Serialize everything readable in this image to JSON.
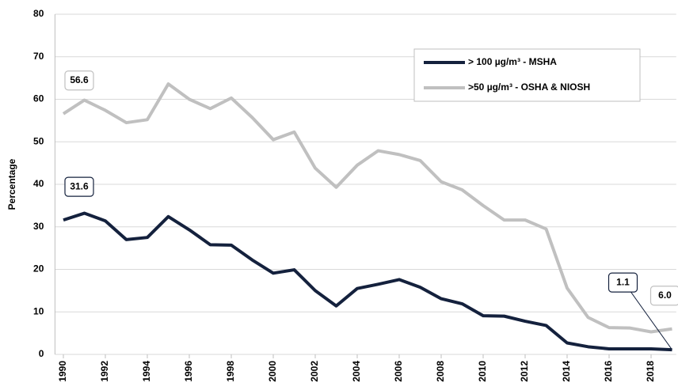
{
  "chart_data": {
    "type": "line",
    "y_label": "Percentage",
    "x": [
      1990,
      1991,
      1992,
      1993,
      1994,
      1995,
      1996,
      1997,
      1998,
      1999,
      2000,
      2001,
      2002,
      2003,
      2004,
      2005,
      2006,
      2007,
      2008,
      2009,
      2010,
      2011,
      2012,
      2013,
      2014,
      2015,
      2016,
      2017,
      2018,
      2019
    ],
    "xlim": [
      1989.6,
      2019.2
    ],
    "xticks": [
      1990,
      1992,
      1994,
      1996,
      1998,
      2000,
      2002,
      2004,
      2006,
      2008,
      2010,
      2012,
      2014,
      2016,
      2018
    ],
    "ylim": [
      0,
      80
    ],
    "yticks": [
      0,
      10,
      20,
      30,
      40,
      50,
      60,
      70,
      80
    ],
    "grid": true,
    "legend": "top-right",
    "series": [
      {
        "name": "> 100 µg/m³ - MSHA",
        "color": "#14213d",
        "values": [
          31.6,
          33.2,
          31.4,
          27.0,
          27.5,
          32.4,
          29.3,
          25.8,
          25.7,
          22.2,
          19.1,
          19.9,
          15.0,
          11.4,
          15.5,
          16.5,
          17.6,
          15.8,
          13.1,
          11.9,
          9.1,
          9.0,
          7.8,
          6.8,
          2.7,
          1.8,
          1.3,
          1.3,
          1.3,
          1.1
        ],
        "value_labels": [
          "31.6",
          null,
          null,
          null,
          null,
          null,
          null,
          null,
          null,
          null,
          null,
          null,
          null,
          null,
          null,
          null,
          null,
          null,
          null,
          null,
          null,
          null,
          null,
          null,
          null,
          null,
          null,
          null,
          null,
          "1.1"
        ]
      },
      {
        "name": ">50 µg/m³ - OSHA & NIOSH",
        "color": "#c0c0c0",
        "values": [
          56.6,
          59.8,
          57.4,
          54.5,
          55.2,
          63.6,
          60.0,
          57.8,
          60.3,
          55.7,
          50.5,
          52.3,
          43.8,
          39.3,
          44.5,
          47.9,
          47.0,
          45.6,
          40.6,
          38.7,
          35.0,
          31.6,
          31.6,
          29.5,
          15.6,
          8.7,
          6.3,
          6.2,
          5.3,
          6.0
        ],
        "value_labels": [
          "56.6",
          null,
          null,
          null,
          null,
          null,
          null,
          null,
          null,
          null,
          null,
          null,
          null,
          null,
          null,
          null,
          null,
          null,
          null,
          null,
          null,
          null,
          null,
          null,
          null,
          null,
          null,
          null,
          null,
          "6.0"
        ]
      }
    ]
  }
}
